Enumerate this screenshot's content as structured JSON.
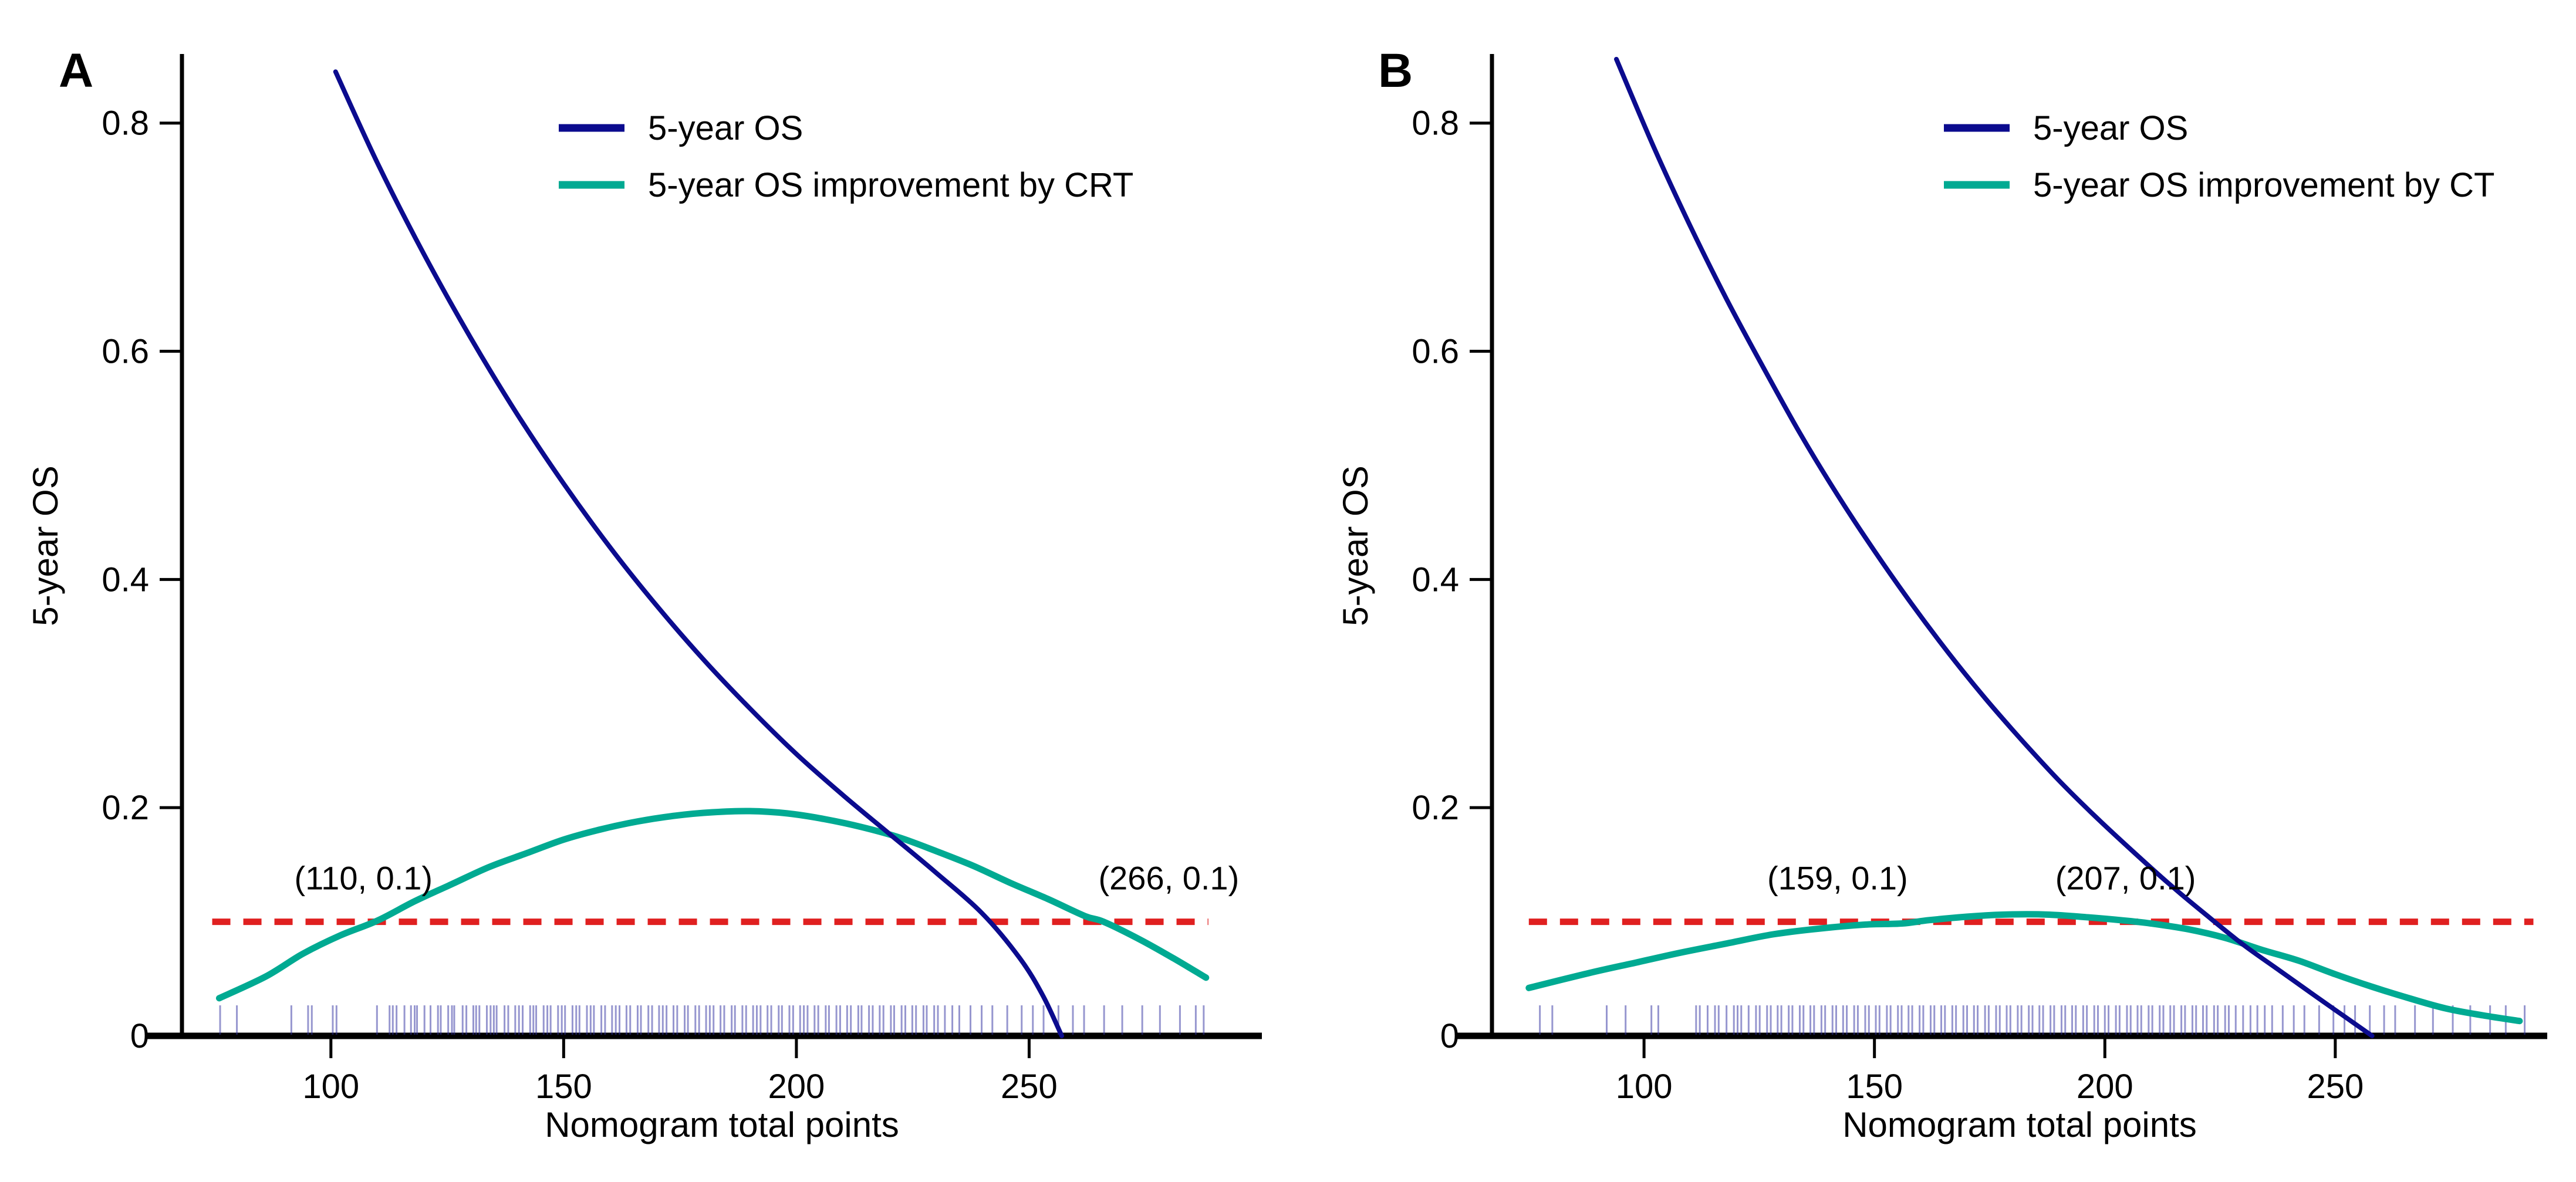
{
  "figure": {
    "background": "#ffffff",
    "axis_color": "#000000"
  },
  "chart_data": [
    {
      "type": "line",
      "panel_label": "A",
      "xlabel": "Nomogram total points",
      "ylabel": "5-year OS",
      "x_ticks": [
        100,
        150,
        200,
        250
      ],
      "y_ticks": [
        0,
        0.2,
        0.4,
        0.6,
        0.8
      ],
      "y_tick_labels": [
        "0",
        "0.2",
        "0.4",
        "0.6",
        "0.8"
      ],
      "xlim": [
        68,
        300
      ],
      "ylim": [
        0,
        0.859
      ],
      "grid": false,
      "legend_position": "top-center",
      "legend": [
        {
          "label": "5-year OS",
          "color": "#0b0b8e"
        },
        {
          "label": "5-year OS improvement by CRT",
          "color": "#00aa92"
        }
      ],
      "threshold_line": {
        "y": 0.1,
        "color": "#e02020",
        "dashed": true,
        "x_start": 74.5,
        "x_end": 288.5
      },
      "annotations": [
        {
          "text": "(110, 0.1)",
          "x": 107,
          "y": 0.138
        },
        {
          "text": "(266, 0.1)",
          "x": 280,
          "y": 0.138
        }
      ],
      "series": [
        {
          "name": "5-year OS",
          "color": "#0b0b8e",
          "width": 8,
          "points": [
            [
              101,
              0.845
            ],
            [
              110,
              0.765
            ],
            [
              120,
              0.685
            ],
            [
              130,
              0.612
            ],
            [
              140,
              0.545
            ],
            [
              150,
              0.484
            ],
            [
              160,
              0.428
            ],
            [
              170,
              0.377
            ],
            [
              180,
              0.33
            ],
            [
              190,
              0.287
            ],
            [
              200,
              0.247
            ],
            [
              210,
              0.211
            ],
            [
              220,
              0.177
            ],
            [
              230,
              0.143
            ],
            [
              240,
              0.107
            ],
            [
              248,
              0.068
            ],
            [
              253,
              0.035
            ],
            [
              257,
              0.0
            ]
          ]
        },
        {
          "name": "5-year OS improvement by CRT",
          "color": "#00aa92",
          "width": 11,
          "points": [
            [
              76,
              0.033
            ],
            [
              86,
              0.052
            ],
            [
              94,
              0.072
            ],
            [
              102,
              0.088
            ],
            [
              110,
              0.101
            ],
            [
              118,
              0.118
            ],
            [
              126,
              0.133
            ],
            [
              134,
              0.148
            ],
            [
              142,
              0.16
            ],
            [
              150,
              0.172
            ],
            [
              158,
              0.181
            ],
            [
              166,
              0.188
            ],
            [
              174,
              0.193
            ],
            [
              182,
              0.196
            ],
            [
              190,
              0.197
            ],
            [
              198,
              0.195
            ],
            [
              206,
              0.19
            ],
            [
              214,
              0.183
            ],
            [
              222,
              0.174
            ],
            [
              230,
              0.162
            ],
            [
              238,
              0.149
            ],
            [
              246,
              0.134
            ],
            [
              254,
              0.12
            ],
            [
              262,
              0.105
            ],
            [
              266,
              0.1
            ],
            [
              274,
              0.084
            ],
            [
              281,
              0.068
            ],
            [
              288,
              0.051
            ]
          ]
        }
      ],
      "rug": {
        "color": "#2e2ea0",
        "values": [
          76.2,
          79.8,
          91.5,
          95.1,
          95.9,
          100.4,
          101.2,
          109.9,
          112.6,
          113.3,
          114.1,
          115.8,
          117.2,
          118.0,
          118.5,
          120.1,
          121.4,
          123.0,
          123.6,
          125.2,
          126.0,
          126.5,
          128.3,
          129.1,
          130.6,
          131.2,
          131.9,
          133.5,
          134.3,
          135.0,
          135.6,
          137.3,
          138.1,
          139.6,
          140.4,
          141.2,
          142.8,
          143.5,
          144.1,
          145.7,
          146.5,
          147.2,
          148.8,
          149.6,
          150.3,
          151.9,
          152.7,
          153.4,
          155.0,
          155.8,
          156.5,
          158.1,
          158.9,
          160.4,
          161.2,
          162.0,
          163.5,
          164.3,
          165.9,
          166.6,
          168.2,
          169.0,
          170.5,
          171.3,
          172.1,
          173.6,
          174.4,
          176.0,
          176.7,
          178.3,
          179.1,
          180.6,
          181.4,
          182.2,
          183.7,
          184.5,
          186.1,
          186.8,
          188.4,
          189.2,
          190.7,
          191.5,
          192.3,
          193.8,
          194.6,
          196.2,
          196.9,
          198.5,
          199.3,
          200.8,
          201.6,
          202.4,
          203.9,
          204.7,
          206.3,
          207.0,
          208.6,
          209.4,
          210.9,
          211.7,
          213.3,
          214.0,
          215.6,
          216.4,
          217.9,
          218.7,
          220.3,
          221.0,
          222.6,
          223.4,
          224.9,
          225.7,
          227.3,
          228.0,
          229.6,
          230.4,
          231.9,
          233.5,
          235.0,
          237.4,
          239.8,
          242.1,
          245.3,
          248.4,
          250.8,
          253.1,
          256.3,
          259.4,
          261.8,
          266.1,
          270.0,
          274.3,
          278.1,
          282.4,
          285.8,
          287.5
        ]
      }
    },
    {
      "type": "line",
      "panel_label": "B",
      "xlabel": "Nomogram total points",
      "ylabel": "5-year OS",
      "x_ticks": [
        100,
        150,
        200,
        250
      ],
      "y_ticks": [
        0,
        0.2,
        0.4,
        0.6,
        0.8
      ],
      "y_tick_labels": [
        "0",
        "0.2",
        "0.4",
        "0.6",
        "0.8"
      ],
      "xlim": [
        67,
        296
      ],
      "ylim": [
        0,
        0.859
      ],
      "grid": false,
      "legend_position": "top-center",
      "legend": [
        {
          "label": "5-year OS",
          "color": "#0b0b8e"
        },
        {
          "label": "5-year OS improvement by CT",
          "color": "#00aa92"
        }
      ],
      "threshold_line": {
        "y": 0.1,
        "color": "#e02020",
        "dashed": true,
        "x_start": 75,
        "x_end": 293
      },
      "annotations": [
        {
          "text": "(159, 0.1)",
          "x": 142,
          "y": 0.138
        },
        {
          "text": "(207, 0.1)",
          "x": 204.5,
          "y": 0.138
        }
      ],
      "series": [
        {
          "name": "5-year OS",
          "color": "#0b0b8e",
          "width": 8,
          "points": [
            [
              94,
              0.856
            ],
            [
              102,
              0.78
            ],
            [
              110,
              0.71
            ],
            [
              118,
              0.645
            ],
            [
              126,
              0.585
            ],
            [
              134,
              0.527
            ],
            [
              142,
              0.474
            ],
            [
              150,
              0.425
            ],
            [
              158,
              0.379
            ],
            [
              166,
              0.336
            ],
            [
              174,
              0.296
            ],
            [
              182,
              0.259
            ],
            [
              190,
              0.224
            ],
            [
              198,
              0.192
            ],
            [
              206,
              0.162
            ],
            [
              214,
              0.133
            ],
            [
              222,
              0.106
            ],
            [
              230,
              0.08
            ],
            [
              238,
              0.057
            ],
            [
              246,
              0.034
            ],
            [
              252,
              0.017
            ],
            [
              258,
              0.0
            ]
          ]
        },
        {
          "name": "5-year OS improvement by CT",
          "color": "#00aa92",
          "width": 11,
          "points": [
            [
              75,
              0.042
            ],
            [
              88,
              0.055
            ],
            [
              98,
              0.064
            ],
            [
              108,
              0.073
            ],
            [
              118,
              0.081
            ],
            [
              128,
              0.089
            ],
            [
              138,
              0.094
            ],
            [
              148,
              0.0975
            ],
            [
              156,
              0.0985
            ],
            [
              162,
              0.1015
            ],
            [
              172,
              0.105
            ],
            [
              180,
              0.1065
            ],
            [
              188,
              0.1062
            ],
            [
              196,
              0.104
            ],
            [
              204,
              0.1012
            ],
            [
              210,
              0.0985
            ],
            [
              218,
              0.0935
            ],
            [
              226,
              0.086
            ],
            [
              234,
              0.0755
            ],
            [
              242,
              0.066
            ],
            [
              250,
              0.054
            ],
            [
              258,
              0.043
            ],
            [
              266,
              0.033
            ],
            [
              274,
              0.024
            ],
            [
              282,
              0.018
            ],
            [
              290,
              0.013
            ]
          ]
        }
      ],
      "rug": {
        "color": "#2e2ea0",
        "values": [
          77.4,
          80.1,
          91.9,
          96.0,
          101.6,
          103.1,
          111.3,
          112.1,
          113.8,
          115.4,
          116.2,
          117.9,
          119.5,
          120.3,
          121.1,
          122.7,
          124.3,
          125.1,
          126.7,
          127.5,
          129.0,
          129.8,
          131.4,
          132.2,
          133.8,
          134.6,
          136.1,
          136.9,
          138.5,
          139.3,
          140.9,
          141.7,
          143.2,
          144.0,
          145.6,
          146.4,
          148.0,
          148.8,
          150.3,
          151.1,
          152.7,
          153.5,
          155.1,
          155.9,
          157.4,
          158.2,
          159.8,
          160.6,
          162.2,
          163.0,
          164.5,
          165.3,
          166.9,
          167.7,
          169.3,
          170.1,
          171.6,
          172.4,
          174.0,
          174.8,
          176.4,
          177.2,
          178.7,
          179.5,
          181.1,
          181.9,
          183.5,
          184.3,
          185.8,
          186.6,
          188.2,
          189.0,
          190.6,
          191.4,
          192.9,
          193.7,
          195.3,
          196.1,
          197.7,
          198.5,
          200.0,
          200.8,
          202.4,
          203.2,
          204.8,
          205.6,
          207.1,
          207.9,
          209.5,
          210.3,
          211.9,
          212.7,
          214.2,
          215.0,
          216.6,
          217.4,
          219.0,
          219.8,
          221.3,
          222.1,
          223.7,
          224.5,
          226.1,
          226.9,
          228.4,
          230.0,
          231.6,
          233.1,
          234.7,
          236.3,
          238.6,
          241.0,
          243.3,
          246.5,
          249.6,
          252.0,
          254.3,
          257.5,
          260.6,
          263.0,
          267.3,
          271.2,
          275.5,
          279.3,
          283.6,
          287.0,
          291.1
        ]
      }
    }
  ]
}
